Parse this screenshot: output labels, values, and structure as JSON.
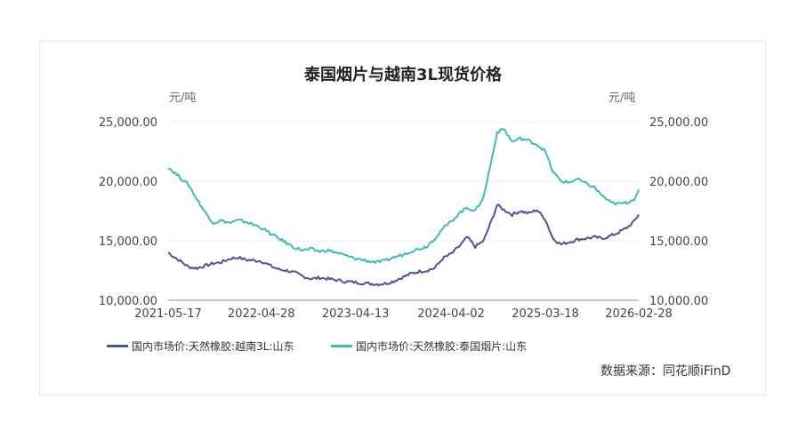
{
  "chart_data": {
    "type": "line",
    "title": "泰国烟片与越南3L现货价格",
    "y_unit_left": "元/吨",
    "y_unit_right": "元/吨",
    "ylim": [
      10000,
      25000
    ],
    "y_ticks": [
      "10,000.00",
      "15,000.00",
      "20,000.00",
      "25,000.00"
    ],
    "y_tick_values": [
      10000,
      15000,
      20000,
      25000
    ],
    "x_ticks": [
      "2021-05-17",
      "2022-04-28",
      "2023-04-13",
      "2024-04-02",
      "2025-03-18",
      "2026-02-28"
    ],
    "xlim": [
      "2021-05-17",
      "2026-02-28"
    ],
    "grid": "horizontal",
    "legend_position": "bottom-left",
    "series": [
      {
        "name": "国内市场价:天然橡胶:越南3L:山东",
        "color": "#4a5593",
        "points": [
          [
            "2021-05-17",
            14000
          ],
          [
            "2021-06-05",
            13700
          ],
          [
            "2021-07-01",
            13300
          ],
          [
            "2021-08-01",
            12800
          ],
          [
            "2021-09-01",
            12700
          ],
          [
            "2021-10-01",
            12900
          ],
          [
            "2021-11-01",
            13100
          ],
          [
            "2021-12-01",
            13200
          ],
          [
            "2022-01-01",
            13500
          ],
          [
            "2022-02-01",
            13600
          ],
          [
            "2022-03-01",
            13400
          ],
          [
            "2022-04-28",
            13300
          ],
          [
            "2022-06-01",
            12900
          ],
          [
            "2022-07-01",
            12600
          ],
          [
            "2022-08-01",
            12500
          ],
          [
            "2022-09-01",
            12300
          ],
          [
            "2022-10-01",
            12000
          ],
          [
            "2022-11-01",
            11800
          ],
          [
            "2022-12-01",
            11900
          ],
          [
            "2023-01-01",
            11800
          ],
          [
            "2023-02-01",
            11700
          ],
          [
            "2023-03-01",
            11600
          ],
          [
            "2023-04-13",
            11500
          ],
          [
            "2023-06-01",
            11400
          ],
          [
            "2023-07-01",
            11350
          ],
          [
            "2023-08-01",
            11400
          ],
          [
            "2023-09-01",
            11600
          ],
          [
            "2023-10-01",
            11900
          ],
          [
            "2023-11-01",
            12200
          ],
          [
            "2023-12-01",
            12400
          ],
          [
            "2024-01-01",
            12500
          ],
          [
            "2024-02-01",
            12700
          ],
          [
            "2024-03-01",
            13500
          ],
          [
            "2024-04-02",
            13900
          ],
          [
            "2024-05-01",
            14500
          ],
          [
            "2024-06-01",
            15300
          ],
          [
            "2024-07-01",
            14500
          ],
          [
            "2024-08-01",
            15000
          ],
          [
            "2024-09-01",
            16800
          ],
          [
            "2024-09-20",
            18000
          ],
          [
            "2024-10-15",
            17600
          ],
          [
            "2024-11-15",
            17200
          ],
          [
            "2024-12-15",
            17500
          ],
          [
            "2025-01-15",
            17300
          ],
          [
            "2025-02-15",
            17600
          ],
          [
            "2025-03-18",
            16800
          ],
          [
            "2025-04-15",
            15200
          ],
          [
            "2025-05-15",
            14700
          ],
          [
            "2025-06-15",
            14900
          ],
          [
            "2025-07-15",
            15100
          ],
          [
            "2025-08-15",
            15200
          ],
          [
            "2025-09-15",
            15300
          ],
          [
            "2025-10-15",
            15200
          ],
          [
            "2025-11-15",
            15400
          ],
          [
            "2025-12-15",
            15700
          ],
          [
            "2026-01-15",
            16100
          ],
          [
            "2026-02-10",
            16600
          ],
          [
            "2026-02-28",
            17200
          ]
        ]
      },
      {
        "name": "国内市场价:天然橡胶:泰国烟片:山东",
        "color": "#3dbdb2",
        "points": [
          [
            "2021-05-17",
            21200
          ],
          [
            "2021-06-05",
            20800
          ],
          [
            "2021-07-01",
            20300
          ],
          [
            "2021-08-01",
            19700
          ],
          [
            "2021-09-01",
            18500
          ],
          [
            "2021-10-01",
            17400
          ],
          [
            "2021-11-01",
            16500
          ],
          [
            "2021-12-01",
            16700
          ],
          [
            "2022-01-01",
            16500
          ],
          [
            "2022-02-01",
            16700
          ],
          [
            "2022-03-01",
            16600
          ],
          [
            "2022-04-28",
            16100
          ],
          [
            "2022-06-01",
            15600
          ],
          [
            "2022-07-01",
            15200
          ],
          [
            "2022-08-01",
            14800
          ],
          [
            "2022-09-01",
            14400
          ],
          [
            "2022-10-01",
            14200
          ],
          [
            "2022-11-01",
            14300
          ],
          [
            "2022-12-01",
            14100
          ],
          [
            "2023-01-01",
            14200
          ],
          [
            "2023-02-01",
            14000
          ],
          [
            "2023-03-01",
            13800
          ],
          [
            "2023-04-13",
            13500
          ],
          [
            "2023-06-01",
            13300
          ],
          [
            "2023-07-01",
            13200
          ],
          [
            "2023-08-01",
            13300
          ],
          [
            "2023-09-01",
            13600
          ],
          [
            "2023-10-01",
            13800
          ],
          [
            "2023-11-01",
            14100
          ],
          [
            "2023-12-01",
            14300
          ],
          [
            "2024-01-01",
            14500
          ],
          [
            "2024-02-01",
            15200
          ],
          [
            "2024-03-01",
            16000
          ],
          [
            "2024-04-02",
            16600
          ],
          [
            "2024-05-01",
            17300
          ],
          [
            "2024-06-01",
            17800
          ],
          [
            "2024-07-01",
            17500
          ],
          [
            "2024-08-01",
            18700
          ],
          [
            "2024-09-01",
            22000
          ],
          [
            "2024-09-20",
            24100
          ],
          [
            "2024-10-15",
            24400
          ],
          [
            "2024-11-15",
            23300
          ],
          [
            "2024-12-15",
            23600
          ],
          [
            "2025-01-15",
            23400
          ],
          [
            "2025-02-15",
            23100
          ],
          [
            "2025-03-18",
            22500
          ],
          [
            "2025-04-15",
            20800
          ],
          [
            "2025-05-15",
            20000
          ],
          [
            "2025-06-15",
            19900
          ],
          [
            "2025-07-15",
            20200
          ],
          [
            "2025-08-15",
            19800
          ],
          [
            "2025-09-15",
            19500
          ],
          [
            "2025-10-15",
            18800
          ],
          [
            "2025-11-15",
            18200
          ],
          [
            "2025-12-15",
            18100
          ],
          [
            "2026-01-15",
            18200
          ],
          [
            "2026-02-10",
            18500
          ],
          [
            "2026-02-28",
            19300
          ]
        ]
      }
    ]
  },
  "source": "数据来源：同花顺iFinD"
}
